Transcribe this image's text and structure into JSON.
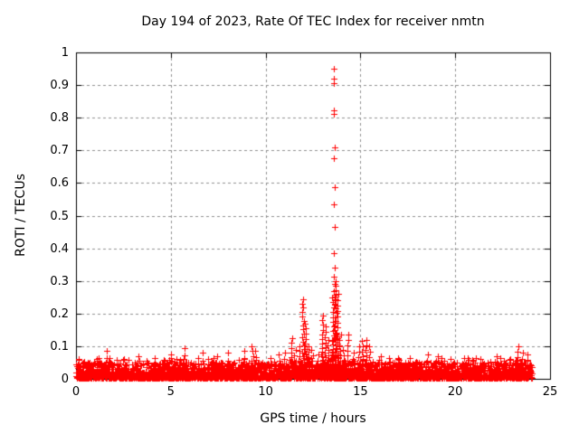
{
  "title": "Day 194 of 2023, Rate Of TEC Index for receiver nmtn",
  "chart_data": {
    "type": "scatter",
    "title": "Day 194 of 2023, Rate Of TEC Index for receiver nmtn",
    "xlabel": "GPS time / hours",
    "ylabel": "ROTI / TECUs",
    "xlim": [
      0,
      25
    ],
    "ylim": [
      0,
      1
    ],
    "xticks": [
      {
        "v": 0,
        "label": "0"
      },
      {
        "v": 5,
        "label": "5"
      },
      {
        "v": 10,
        "label": "10"
      },
      {
        "v": 15,
        "label": "15"
      },
      {
        "v": 20,
        "label": "20"
      },
      {
        "v": 25,
        "label": "25"
      }
    ],
    "yticks": [
      {
        "v": 0,
        "label": "0"
      },
      {
        "v": 0.1,
        "label": "0.1"
      },
      {
        "v": 0.2,
        "label": "0.2"
      },
      {
        "v": 0.3,
        "label": "0.3"
      },
      {
        "v": 0.4,
        "label": "0.4"
      },
      {
        "v": 0.5,
        "label": "0.5"
      },
      {
        "v": 0.6,
        "label": "0.6"
      },
      {
        "v": 0.7,
        "label": "0.7"
      },
      {
        "v": 0.8,
        "label": "0.8"
      },
      {
        "v": 0.9,
        "label": "0.9"
      },
      {
        "v": 1,
        "label": "1"
      }
    ],
    "grid": true,
    "grid_color": "#909090",
    "axis_color": "#000000",
    "background": "#ffffff",
    "marker": {
      "symbol": "plus",
      "color": "#ff0000",
      "size": 7
    },
    "legend": null,
    "data_x_range": [
      0,
      24.05
    ],
    "baseline_band": {
      "x_start": 0,
      "x_end": 24.05,
      "n": 2600,
      "y_min": 0.003,
      "y_scale": 0.048,
      "exp": 2.3
    },
    "texture_points": {
      "n": 600,
      "y_min": 0.004,
      "y_scale": 0.06,
      "exp": 2.0
    },
    "spikes": [
      {
        "x": 1.15,
        "top": 0.065,
        "n": 4
      },
      {
        "x": 1.62,
        "top": 0.085,
        "n": 5
      },
      {
        "x": 2.5,
        "top": 0.06,
        "n": 3
      },
      {
        "x": 3.3,
        "top": 0.07,
        "n": 4
      },
      {
        "x": 4.2,
        "top": 0.065,
        "n": 4
      },
      {
        "x": 5.05,
        "top": 0.075,
        "n": 4
      },
      {
        "x": 5.75,
        "top": 0.095,
        "n": 5
      },
      {
        "x": 6.7,
        "top": 0.08,
        "n": 4
      },
      {
        "x": 7.4,
        "top": 0.07,
        "n": 4
      },
      {
        "x": 8.0,
        "top": 0.08,
        "n": 4
      },
      {
        "x": 8.9,
        "top": 0.085,
        "n": 5
      },
      {
        "x": 9.3,
        "top": 0.1,
        "n": 8
      },
      {
        "x": 9.5,
        "top": 0.085,
        "n": 6
      },
      {
        "x": 10.3,
        "top": 0.065,
        "n": 4
      },
      {
        "x": 10.7,
        "top": 0.075,
        "n": 5
      },
      {
        "x": 11.0,
        "top": 0.08,
        "n": 5
      },
      {
        "x": 11.35,
        "top": 0.125,
        "n": 10
      },
      {
        "x": 11.55,
        "top": 0.09,
        "n": 6
      },
      {
        "x": 11.75,
        "top": 0.1,
        "n": 8
      },
      {
        "x": 11.97,
        "top": 0.245,
        "n": 22
      },
      {
        "x": 12.12,
        "top": 0.17,
        "n": 13
      },
      {
        "x": 12.3,
        "top": 0.1,
        "n": 7
      },
      {
        "x": 12.45,
        "top": 0.09,
        "n": 6
      },
      {
        "x": 12.75,
        "top": 0.075,
        "n": 5
      },
      {
        "x": 13.0,
        "top": 0.195,
        "n": 16
      },
      {
        "x": 13.15,
        "top": 0.16,
        "n": 12
      },
      {
        "x": 13.3,
        "top": 0.12,
        "n": 9
      },
      {
        "x": 13.55,
        "top": 0.25,
        "n": 20
      },
      {
        "x": 13.68,
        "top": 0.3,
        "n": 26
      },
      {
        "x": 13.78,
        "top": 0.26,
        "n": 18
      },
      {
        "x": 13.92,
        "top": 0.135,
        "n": 10
      },
      {
        "x": 14.1,
        "top": 0.09,
        "n": 6
      },
      {
        "x": 14.35,
        "top": 0.135,
        "n": 10
      },
      {
        "x": 14.6,
        "top": 0.08,
        "n": 5
      },
      {
        "x": 14.9,
        "top": 0.1,
        "n": 7
      },
      {
        "x": 15.1,
        "top": 0.115,
        "n": 9
      },
      {
        "x": 15.3,
        "top": 0.12,
        "n": 9
      },
      {
        "x": 15.5,
        "top": 0.1,
        "n": 7
      },
      {
        "x": 16.1,
        "top": 0.07,
        "n": 4
      },
      {
        "x": 16.5,
        "top": 0.065,
        "n": 4
      },
      {
        "x": 17.0,
        "top": 0.06,
        "n": 3
      },
      {
        "x": 17.6,
        "top": 0.065,
        "n": 4
      },
      {
        "x": 18.55,
        "top": 0.075,
        "n": 5
      },
      {
        "x": 19.1,
        "top": 0.07,
        "n": 4
      },
      {
        "x": 19.7,
        "top": 0.06,
        "n": 3
      },
      {
        "x": 20.65,
        "top": 0.065,
        "n": 4
      },
      {
        "x": 21.3,
        "top": 0.06,
        "n": 3
      },
      {
        "x": 22.2,
        "top": 0.07,
        "n": 4
      },
      {
        "x": 23.3,
        "top": 0.1,
        "n": 7
      },
      {
        "x": 23.55,
        "top": 0.08,
        "n": 5
      },
      {
        "x": 23.85,
        "top": 0.075,
        "n": 5
      }
    ],
    "outlier_points": [
      [
        13.61,
        0.95
      ],
      [
        13.59,
        0.921
      ],
      [
        13.61,
        0.905
      ],
      [
        13.59,
        0.824
      ],
      [
        13.61,
        0.812
      ],
      [
        13.63,
        0.71
      ],
      [
        13.6,
        0.677
      ],
      [
        13.63,
        0.587
      ],
      [
        13.6,
        0.535
      ],
      [
        13.63,
        0.464
      ],
      [
        13.6,
        0.386
      ],
      [
        13.66,
        0.34
      ],
      [
        13.62,
        0.314
      ],
      [
        13.65,
        0.29
      ],
      [
        13.61,
        0.268
      ],
      [
        13.66,
        0.252
      ],
      [
        13.7,
        0.24
      ],
      [
        13.64,
        0.228
      ]
    ]
  }
}
